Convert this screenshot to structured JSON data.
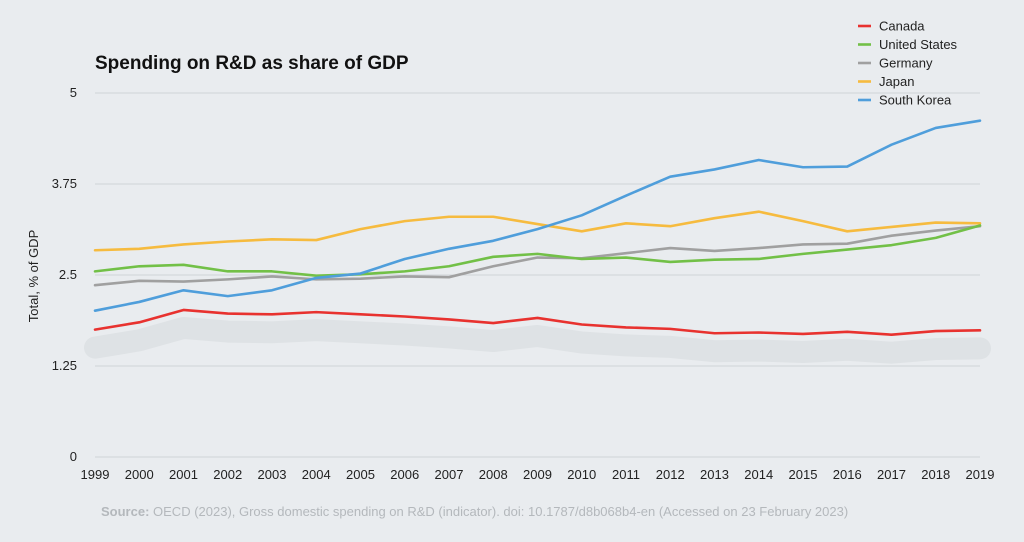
{
  "chart_data": {
    "type": "line",
    "title": "Spending on R&D as share of GDP",
    "ylabel": "Total, % of GDP",
    "xlabel": "",
    "x": [
      "1999",
      "2000",
      "2001",
      "2002",
      "2003",
      "2004",
      "2005",
      "2006",
      "2007",
      "2008",
      "2009",
      "2010",
      "2011",
      "2012",
      "2013",
      "2014",
      "2015",
      "2016",
      "2017",
      "2018",
      "2019"
    ],
    "ylim": [
      0,
      5
    ],
    "yticks": [
      0,
      1.25,
      2.5,
      3.75,
      5
    ],
    "ytick_labels": [
      "0",
      "1.25",
      "2.5",
      "3.75",
      "5"
    ],
    "grid": true,
    "legend_position": "top-right",
    "series": [
      {
        "name": "Canada",
        "color": "#e8322f",
        "values": [
          1.75,
          1.85,
          2.02,
          1.97,
          1.96,
          1.99,
          1.96,
          1.93,
          1.89,
          1.84,
          1.91,
          1.82,
          1.78,
          1.76,
          1.7,
          1.71,
          1.69,
          1.72,
          1.68,
          1.73,
          1.74
        ]
      },
      {
        "name": "United States",
        "color": "#72c047",
        "values": [
          2.55,
          2.62,
          2.64,
          2.55,
          2.55,
          2.49,
          2.51,
          2.55,
          2.62,
          2.75,
          2.79,
          2.72,
          2.74,
          2.68,
          2.71,
          2.72,
          2.79,
          2.85,
          2.91,
          3.01,
          3.18
        ]
      },
      {
        "name": "Germany",
        "color": "#a0a0a0",
        "values": [
          2.36,
          2.42,
          2.41,
          2.44,
          2.48,
          2.44,
          2.45,
          2.48,
          2.47,
          2.62,
          2.74,
          2.73,
          2.8,
          2.87,
          2.83,
          2.87,
          2.92,
          2.93,
          3.04,
          3.11,
          3.17
        ]
      },
      {
        "name": "Japan",
        "color": "#f6bb3f",
        "values": [
          2.84,
          2.86,
          2.92,
          2.96,
          2.99,
          2.98,
          3.13,
          3.24,
          3.3,
          3.3,
          3.2,
          3.1,
          3.21,
          3.17,
          3.28,
          3.37,
          3.24,
          3.1,
          3.16,
          3.22,
          3.21
        ]
      },
      {
        "name": "South Korea",
        "color": "#4f9edb",
        "values": [
          2.01,
          2.13,
          2.29,
          2.21,
          2.29,
          2.46,
          2.52,
          2.72,
          2.86,
          2.97,
          3.13,
          3.32,
          3.59,
          3.85,
          3.95,
          4.08,
          3.98,
          3.99,
          4.29,
          4.52,
          4.62
        ]
      }
    ]
  },
  "source": {
    "label": "Source:",
    "text": " OECD (2023), Gross domestic spending on R&D (indicator). doi: 10.1787/d8b068b4-en (Accessed on 23 February 2023)"
  }
}
